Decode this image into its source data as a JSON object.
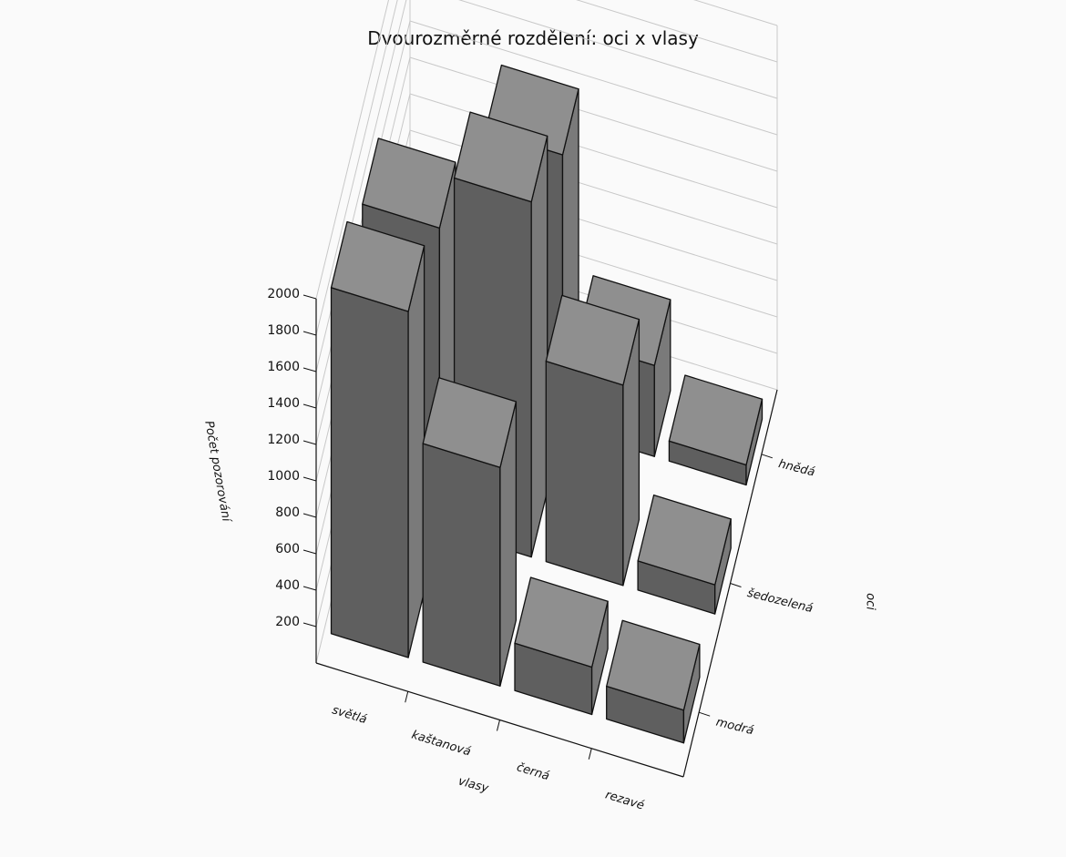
{
  "chart_data": {
    "type": "bar",
    "title": "Dvourozměrné rozdělení: oci x vlasy",
    "xlabel": "vlasy",
    "ylabel": "oci",
    "zlabel": "Počet pozorování",
    "x_categories": [
      "světlá",
      "kaštanová",
      "černá",
      "rezavé"
    ],
    "y_categories": [
      "modrá",
      "šedozelená",
      "hnědá"
    ],
    "zlim": [
      0,
      2000
    ],
    "z_ticks": [
      200,
      400,
      600,
      800,
      1000,
      1200,
      1400,
      1600,
      1800,
      2000
    ],
    "z_tick_labels": [
      "200",
      "400",
      "600",
      "800",
      "1000",
      "1200",
      "1400",
      "1600",
      "1800",
      "2000"
    ],
    "series": [
      {
        "name": "modrá",
        "values": [
          1900,
          1200,
          260,
          180
        ]
      },
      {
        "name": "šedozelená",
        "values": [
          1650,
          1950,
          1100,
          160
        ]
      },
      {
        "name": "hnědá",
        "values": [
          780,
          1500,
          500,
          110
        ]
      }
    ],
    "grid": true,
    "colors": {
      "top": "#8f8f8f",
      "front": "#5f5f5f",
      "side": "#7a7a7a",
      "edge": "#111111",
      "grid": "#c8c8c8"
    }
  }
}
